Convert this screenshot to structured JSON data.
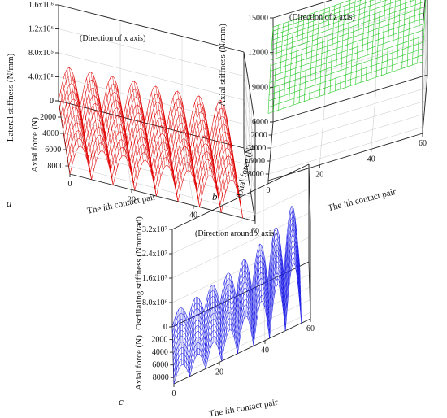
{
  "chart_data": [
    {
      "id": "a",
      "type": "surface3d",
      "panel_label": "a",
      "title": "(Direction of x axis)",
      "zlabel": "Lateral stiffness (N/mm)",
      "ylabel": "Axial force (N)",
      "xlabel_prefix": "The ",
      "xlabel_italic": "i",
      "xlabel_suffix": "th contact pair",
      "z_ticks": [
        "0",
        "4.0x10⁵",
        "8.0x10⁵",
        "1.2x10⁶",
        "1.6x10⁶"
      ],
      "z_tick_values": [
        0,
        400000,
        800000,
        1200000,
        1600000
      ],
      "zlim": [
        0,
        1600000
      ],
      "y_ticks": [
        "0",
        "2000",
        "4000",
        "6000",
        "8000"
      ],
      "y_tick_values": [
        0,
        2000,
        4000,
        6000,
        8000
      ],
      "ylim": [
        0,
        9000
      ],
      "x_ticks": [
        "0",
        "20",
        "40",
        "60"
      ],
      "x_tick_values": [
        0,
        20,
        40,
        60
      ],
      "xlim": [
        0,
        60
      ],
      "series": [
        {
          "color": "#e00000",
          "shape": "eight half-sine lobes along contact pairs, each lobe peak about 6.0x10⁵ N/mm to 7.0x10⁵ N/mm, amplitude rising slightly with contact pair, extended along axial force 0 to 9000 N",
          "lobe_starts": [
            0,
            7,
            14,
            21,
            28,
            35,
            42,
            49
          ],
          "lobe_width": 7,
          "lobe_peaks": [
            600000,
            620000,
            640000,
            650000,
            660000,
            670000,
            680000,
            700000
          ]
        }
      ]
    },
    {
      "id": "b",
      "type": "surface3d",
      "panel_label": "b",
      "title": "(Direction of z axis)",
      "zlabel": "Axial stiffness (N/mm)",
      "ylabel": "Axial force (N)",
      "xlabel_prefix": "The ",
      "xlabel_italic": "i",
      "xlabel_suffix": "th contact pair",
      "z_ticks": [
        "6000",
        "9000",
        "12000",
        "15000"
      ],
      "z_tick_values": [
        6000,
        9000,
        12000,
        15000
      ],
      "zlim": [
        6000,
        15000
      ],
      "y_ticks": [
        "0",
        "2000",
        "4000",
        "6000",
        "8000"
      ],
      "y_tick_values": [
        0,
        2000,
        4000,
        6000,
        8000
      ],
      "ylim": [
        0,
        9000
      ],
      "x_ticks": [
        "0",
        "20",
        "40",
        "60"
      ],
      "x_tick_values": [
        0,
        20,
        40,
        60
      ],
      "xlim": [
        0,
        60
      ],
      "series": [
        {
          "color": "#22c822",
          "shape": "smooth sheet; axial stiffness about 14000 at zero axial force rising to about 15000 N/mm, drops towards about 11000-12000 N/mm near high axial force and high contact pair",
          "corner_values": {
            "x0_y0": 14200,
            "x60_y0": 14800,
            "x0_y9000": 11800,
            "x60_y9000": 12200
          }
        }
      ]
    },
    {
      "id": "c",
      "type": "surface3d",
      "panel_label": "c",
      "title": "(Direction around x axis)",
      "zlabel": "Oscillating stiffness (Nmm/rad)",
      "ylabel": "Axial force (N)",
      "xlabel_prefix": "The ",
      "xlabel_italic": "i",
      "xlabel_suffix": "th contact pair",
      "z_ticks": [
        "0",
        "8.0x10⁶",
        "1.6x10⁷",
        "2.4x10⁷",
        "3.2x10⁷"
      ],
      "z_tick_values": [
        0,
        8000000,
        16000000,
        24000000,
        32000000
      ],
      "zlim": [
        0,
        32000000
      ],
      "y_ticks": [
        "0",
        "2000",
        "4000",
        "6000",
        "8000"
      ],
      "y_tick_values": [
        0,
        2000,
        4000,
        6000,
        8000
      ],
      "ylim": [
        0,
        9000
      ],
      "x_ticks": [
        "0",
        "20",
        "40",
        "60"
      ],
      "x_tick_values": [
        0,
        20,
        40,
        60
      ],
      "xlim": [
        0,
        60
      ],
      "series": [
        {
          "color": "#1a1ae6",
          "shape": "eight half-sine lobes along contact pairs with peak oscillating stiffness growing from about 5x10⁶ to about 2.1x10⁷ Nmm/rad",
          "lobe_starts": [
            0,
            7,
            14,
            21,
            28,
            35,
            42,
            49
          ],
          "lobe_width": 7,
          "lobe_peaks": [
            5000000,
            6000000,
            7500000,
            9000000,
            11000000,
            13500000,
            16500000,
            21000000
          ]
        }
      ]
    }
  ]
}
